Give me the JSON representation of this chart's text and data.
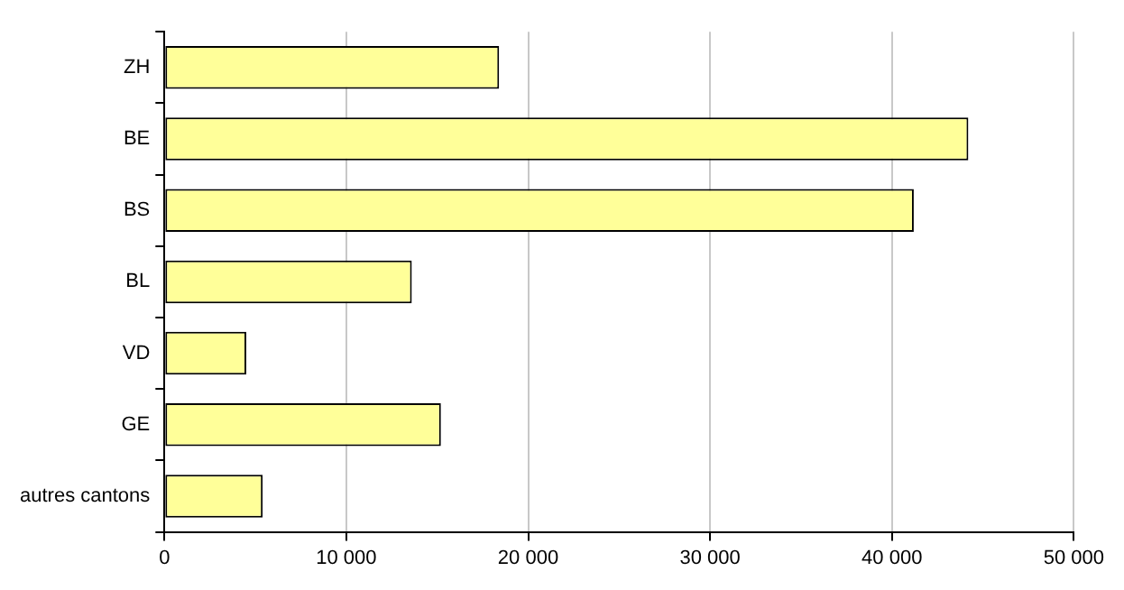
{
  "chart_data": {
    "type": "bar",
    "orientation": "horizontal",
    "categories": [
      "ZH",
      "BE",
      "BS",
      "BL",
      "VD",
      "GE",
      "autres cantons"
    ],
    "values": [
      18400,
      44200,
      41200,
      13600,
      4500,
      15200,
      5400
    ],
    "color": "#ffff99",
    "xlim": [
      0,
      50000
    ],
    "xticks": [
      {
        "value": 0,
        "label": "0"
      },
      {
        "value": 10000,
        "label": "10 000"
      },
      {
        "value": 20000,
        "label": "20 000"
      },
      {
        "value": 30000,
        "label": "30 000"
      },
      {
        "value": 40000,
        "label": "40 000"
      },
      {
        "value": 50000,
        "label": "50 000"
      }
    ],
    "grid": "x",
    "legend": false
  }
}
